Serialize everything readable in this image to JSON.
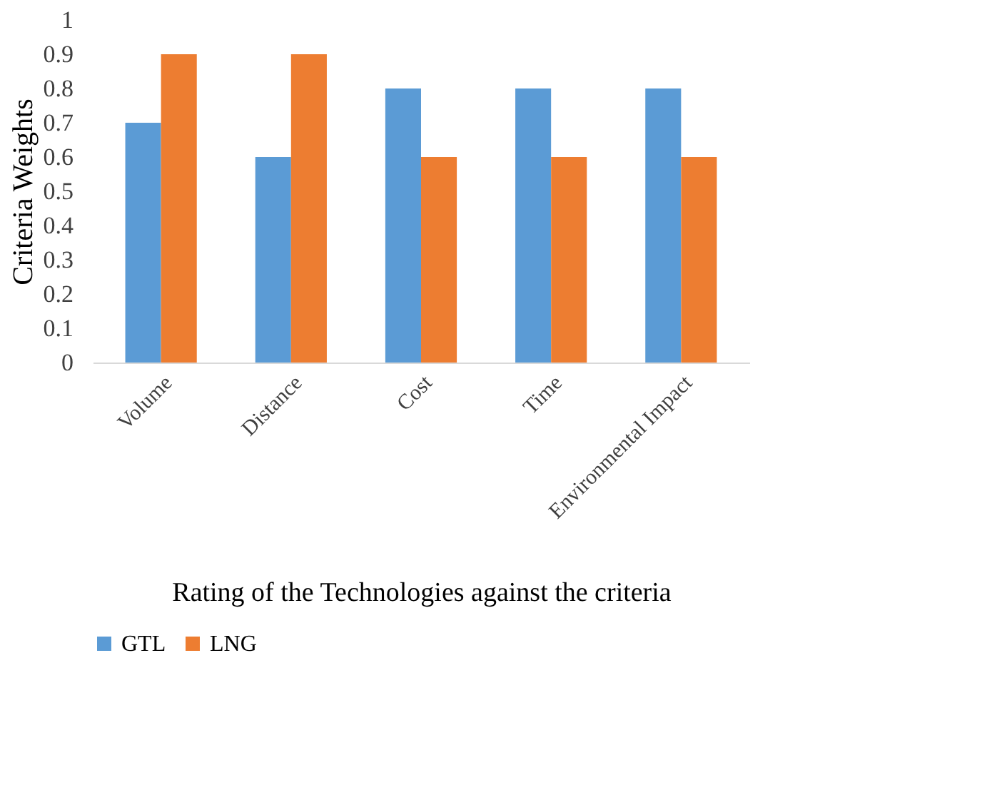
{
  "chart_data": {
    "type": "bar",
    "xlabel": "Rating of the Technologies against the criteria",
    "ylabel": "Criteria Weights",
    "categories": [
      "Volume",
      "Distance",
      "Cost",
      "Time",
      "Environmental Impact"
    ],
    "series": [
      {
        "name": "GTL",
        "color": "#5b9bd5",
        "values": [
          0.7,
          0.6,
          0.8,
          0.8,
          0.8
        ]
      },
      {
        "name": "LNG",
        "color": "#ed7d31",
        "values": [
          0.9,
          0.9,
          0.6,
          0.6,
          0.6
        ]
      }
    ],
    "ylim": [
      0,
      1
    ],
    "yticks": [
      0,
      0.1,
      0.2,
      0.3,
      0.4,
      0.5,
      0.6,
      0.7,
      0.8,
      0.9,
      1
    ],
    "grid": false,
    "legend": "bottom"
  }
}
